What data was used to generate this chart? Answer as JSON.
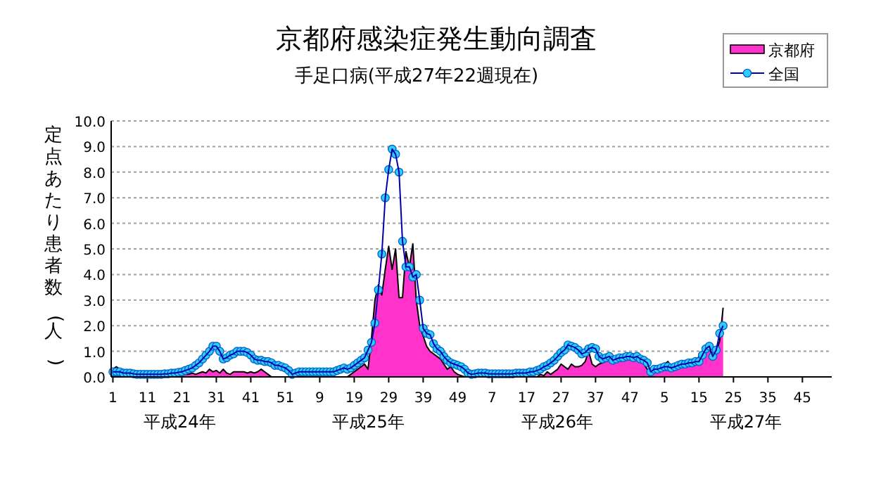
{
  "chart_data": {
    "type": "line",
    "title": "京都府感染症発生動向調査",
    "subtitle": "手足口病(平成27年22週現在)",
    "ylabel": "定点あたり患者数(人)",
    "categories": [
      "1",
      null,
      null,
      null,
      null,
      null,
      null,
      null,
      null,
      null,
      "11",
      null,
      null,
      null,
      null,
      null,
      null,
      null,
      null,
      null,
      "21",
      null,
      null,
      null,
      null,
      null,
      null,
      null,
      null,
      null,
      "31",
      null,
      null,
      null,
      null,
      null,
      null,
      null,
      null,
      null,
      "41",
      null,
      null,
      null,
      null,
      null,
      null,
      null,
      null,
      null,
      "51",
      null,
      null,
      null,
      null,
      null,
      null,
      null,
      null,
      null,
      "9",
      null,
      null,
      null,
      null,
      null,
      null,
      null,
      null,
      null,
      "19",
      null,
      null,
      null,
      null,
      null,
      null,
      null,
      null,
      null,
      "29",
      null,
      null,
      null,
      null,
      null,
      null,
      null,
      null,
      null,
      "39",
      null,
      null,
      null,
      null,
      null,
      null,
      null,
      null,
      null,
      "49",
      null,
      null,
      null,
      null,
      null,
      null,
      null,
      null,
      null,
      "7",
      null,
      null,
      null,
      null,
      null,
      null,
      null,
      null,
      null,
      "17",
      null,
      null,
      null,
      null,
      null,
      null,
      null,
      null,
      null,
      "27",
      null,
      null,
      null,
      null,
      null,
      null,
      null,
      null,
      null,
      "37",
      null,
      null,
      null,
      null,
      null,
      null,
      null,
      null,
      null,
      "47",
      null,
      null,
      null,
      null,
      null,
      null,
      null,
      null,
      null,
      "5",
      null,
      null,
      null,
      null,
      null,
      null,
      null,
      null,
      null,
      "15",
      null,
      null,
      null,
      null,
      null,
      null,
      null,
      null,
      null,
      "25",
      null,
      null,
      null,
      null,
      null,
      null,
      null,
      null,
      null,
      "35",
      null,
      null,
      null,
      null,
      null,
      null,
      null,
      null,
      null,
      "45",
      null,
      null,
      null,
      null,
      null,
      null,
      null,
      null
    ],
    "series": [
      {
        "name": "京都府",
        "type": "area",
        "color": "#ff33cc",
        "values": [
          0.3,
          0.4,
          0.3,
          0.2,
          0.1,
          0.05,
          0.05,
          0.05,
          0.05,
          0.05,
          0.05,
          0.05,
          0.05,
          0.05,
          0.05,
          0.05,
          0.05,
          0.05,
          0.05,
          0.05,
          0.1,
          0.1,
          0.1,
          0.15,
          0.1,
          0.15,
          0.2,
          0.15,
          0.3,
          0.2,
          0.25,
          0.15,
          0.3,
          0.15,
          0.1,
          0.2,
          0.2,
          0.2,
          0.2,
          0.15,
          0.2,
          0.15,
          0.2,
          0.3,
          0.2,
          0.1,
          0,
          0,
          0,
          0,
          0,
          0,
          0,
          0,
          0,
          0,
          0,
          0,
          0,
          0,
          0,
          0,
          0,
          0,
          0,
          0,
          0,
          0,
          0,
          0.1,
          0.2,
          0.3,
          0.4,
          0.5,
          0.3,
          1.5,
          3.0,
          3.6,
          3.2,
          4.2,
          5.1,
          4.2,
          5.0,
          3.1,
          3.1,
          4.9,
          4.3,
          5.2,
          3.0,
          2.0,
          1.6,
          1.2,
          1.0,
          0.9,
          0.8,
          0.7,
          0.5,
          0.3,
          0.4,
          0.2,
          0.1,
          0.05,
          0,
          0,
          0,
          0,
          0,
          0,
          0,
          0,
          0,
          0,
          0,
          0,
          0,
          0,
          0,
          0,
          0,
          0,
          0,
          0,
          0,
          0,
          0.1,
          0.05,
          0.2,
          0.1,
          0.2,
          0.3,
          0.5,
          0.4,
          0.3,
          0.5,
          0.4,
          0.4,
          0.45,
          0.6,
          1.0,
          0.5,
          0.4,
          0.5,
          0.55,
          0.6,
          0.65,
          0.7,
          0.75,
          0.7,
          0.8,
          0.85,
          0.8,
          0.9,
          0.7,
          0.6,
          0.5,
          0.3,
          0.2,
          0.3,
          0.3,
          0.4,
          0.5,
          0.6,
          0.4,
          0.4,
          0.5,
          0.5,
          0.5,
          0.6,
          0.5,
          0.6,
          0.8,
          1.0,
          1.2,
          1.1,
          0.8,
          1.0,
          1.4,
          2.7,
          null,
          null,
          null,
          null,
          null,
          null,
          null,
          null,
          null,
          null,
          null,
          null,
          null,
          null,
          null,
          null,
          null,
          null,
          null,
          null,
          null,
          null,
          null,
          null,
          null,
          null,
          null,
          null,
          null,
          null,
          null
        ]
      },
      {
        "name": "全国",
        "color": "#33ccff",
        "marker": "circle",
        "values": [
          0.2,
          0.2,
          0.2,
          0.15,
          0.15,
          0.15,
          0.12,
          0.1,
          0.1,
          0.1,
          0.1,
          0.1,
          0.1,
          0.1,
          0.1,
          0.12,
          0.12,
          0.15,
          0.15,
          0.18,
          0.2,
          0.25,
          0.3,
          0.35,
          0.45,
          0.55,
          0.7,
          0.85,
          1.0,
          1.2,
          1.2,
          1.0,
          0.7,
          0.75,
          0.85,
          0.9,
          1.0,
          1.0,
          1.0,
          0.95,
          0.85,
          0.7,
          0.65,
          0.65,
          0.6,
          0.6,
          0.55,
          0.45,
          0.45,
          0.4,
          0.35,
          0.25,
          0.1,
          0.15,
          0.2,
          0.2,
          0.2,
          0.2,
          0.2,
          0.2,
          0.2,
          0.2,
          0.2,
          0.2,
          0.2,
          0.25,
          0.3,
          0.35,
          0.3,
          0.35,
          0.45,
          0.55,
          0.65,
          0.75,
          1.05,
          1.35,
          2.1,
          3.4,
          4.8,
          7.0,
          8.1,
          8.9,
          8.7,
          8.0,
          5.3,
          4.3,
          4.3,
          3.9,
          4.0,
          3.0,
          1.9,
          1.7,
          1.65,
          1.3,
          1.1,
          1.0,
          0.8,
          0.65,
          0.55,
          0.5,
          0.45,
          0.4,
          0.3,
          0.15,
          0.1,
          0.12,
          0.15,
          0.15,
          0.15,
          0.12,
          0.12,
          0.12,
          0.12,
          0.12,
          0.12,
          0.12,
          0.12,
          0.15,
          0.15,
          0.15,
          0.15,
          0.2,
          0.2,
          0.25,
          0.3,
          0.4,
          0.45,
          0.55,
          0.65,
          0.8,
          0.95,
          1.05,
          1.25,
          1.2,
          1.15,
          1.05,
          0.9,
          0.95,
          1.1,
          1.15,
          1.1,
          0.8,
          0.7,
          0.75,
          0.8,
          0.65,
          0.7,
          0.75,
          0.75,
          0.8,
          0.8,
          0.75,
          0.8,
          0.7,
          0.65,
          0.55,
          0.2,
          0.3,
          0.3,
          0.35,
          0.4,
          0.4,
          0.35,
          0.4,
          0.45,
          0.5,
          0.5,
          0.55,
          0.55,
          0.6,
          0.6,
          0.85,
          1.1,
          1.2,
          0.8,
          1.05,
          1.7,
          2.0,
          null,
          null,
          null,
          null,
          null,
          null,
          null,
          null,
          null,
          null,
          null,
          null,
          null,
          null,
          null,
          null,
          null,
          null,
          null,
          null,
          null,
          null,
          null,
          null,
          null,
          null,
          null,
          null,
          null,
          null,
          null
        ]
      }
    ],
    "ylim": [
      0,
      10
    ],
    "yticks": [
      {
        "value": 0,
        "label": "0.0"
      },
      {
        "value": 1,
        "label": "1.0"
      },
      {
        "value": 2,
        "label": "2.0"
      },
      {
        "value": 3,
        "label": "3.0"
      },
      {
        "value": 4,
        "label": "4.0"
      },
      {
        "value": 5,
        "label": "5.0"
      },
      {
        "value": 6,
        "label": "6.0"
      },
      {
        "value": 7,
        "label": "7.0"
      },
      {
        "value": 8,
        "label": "8.0"
      },
      {
        "value": 9,
        "label": "9.0"
      },
      {
        "value": 10,
        "label": "10.0"
      }
    ],
    "grid": "y",
    "legend": "top right",
    "annotations": [
      "平成24年",
      "平成25年",
      "平成26年",
      "平成27年"
    ]
  }
}
